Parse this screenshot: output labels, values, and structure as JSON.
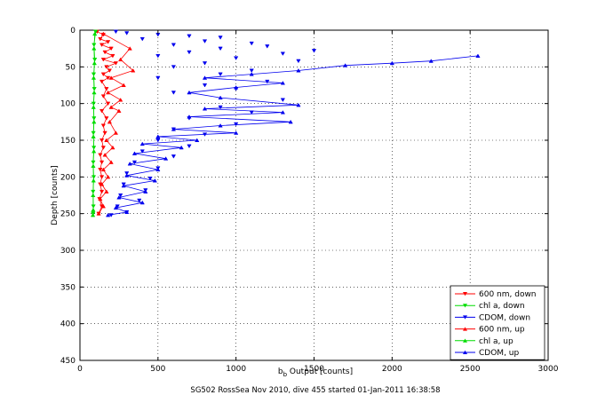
{
  "chart_data": {
    "type": "scatter",
    "xlabel_main": "b",
    "xlabel_sub": "b",
    "xlabel_rest": " Output [counts]",
    "ylabel": "Depth [counts]",
    "caption": "SG502 RossSea Nov 2010, dive 455 started 01-Jan-2011 16:38:58",
    "xlim": [
      0,
      3000
    ],
    "ylim": [
      0,
      450
    ],
    "y_reversed": true,
    "grid": true,
    "legend_placement": "bottom-right",
    "xticks": [
      0,
      500,
      1000,
      1500,
      2000,
      2500,
      3000
    ],
    "yticks": [
      0,
      50,
      100,
      150,
      200,
      250,
      300,
      350,
      400,
      450
    ],
    "series": [
      {
        "name": "600 nm, down",
        "color": "#ff0000",
        "marker": "triangle-down",
        "points": [
          [
            110,
            2
          ],
          [
            150,
            6
          ],
          [
            130,
            12
          ],
          [
            180,
            16
          ],
          [
            140,
            20
          ],
          [
            200,
            25
          ],
          [
            160,
            30
          ],
          [
            210,
            35
          ],
          [
            150,
            40
          ],
          [
            230,
            45
          ],
          [
            170,
            50
          ],
          [
            190,
            55
          ],
          [
            150,
            60
          ],
          [
            180,
            65
          ],
          [
            140,
            70
          ],
          [
            170,
            80
          ],
          [
            150,
            90
          ],
          [
            180,
            100
          ],
          [
            140,
            110
          ],
          [
            170,
            120
          ],
          [
            150,
            130
          ],
          [
            160,
            140
          ],
          [
            140,
            150
          ],
          [
            150,
            160
          ],
          [
            130,
            170
          ],
          [
            140,
            180
          ],
          [
            130,
            190
          ],
          [
            140,
            200
          ],
          [
            130,
            210
          ],
          [
            140,
            220
          ],
          [
            125,
            230
          ],
          [
            140,
            240
          ],
          [
            120,
            250
          ]
        ]
      },
      {
        "name": "chl a, down",
        "color": "#00dd00",
        "marker": "triangle-down",
        "points": [
          [
            100,
            2
          ],
          [
            90,
            20
          ],
          [
            95,
            40
          ],
          [
            88,
            60
          ],
          [
            92,
            80
          ],
          [
            87,
            100
          ],
          [
            90,
            120
          ],
          [
            86,
            140
          ],
          [
            89,
            160
          ],
          [
            85,
            180
          ],
          [
            88,
            200
          ],
          [
            84,
            220
          ],
          [
            86,
            240
          ],
          [
            84,
            250
          ]
        ]
      },
      {
        "name": "CDOM, down",
        "color": "#0000ee",
        "marker": "triangle-down",
        "points": [
          [
            230,
            2
          ],
          [
            300,
            4
          ],
          [
            500,
            6
          ],
          [
            700,
            8
          ],
          [
            900,
            10
          ],
          [
            400,
            12
          ],
          [
            800,
            15
          ],
          [
            1100,
            18
          ],
          [
            600,
            20
          ],
          [
            1200,
            22
          ],
          [
            900,
            25
          ],
          [
            1500,
            28
          ],
          [
            700,
            30
          ],
          [
            1300,
            32
          ],
          [
            500,
            35
          ],
          [
            1000,
            38
          ],
          [
            1400,
            42
          ],
          [
            800,
            45
          ],
          [
            600,
            50
          ],
          [
            1100,
            55
          ],
          [
            900,
            60
          ],
          [
            500,
            65
          ],
          [
            1200,
            70
          ],
          [
            800,
            75
          ],
          [
            1000,
            80
          ],
          [
            600,
            85
          ],
          [
            1300,
            95
          ],
          [
            900,
            105
          ],
          [
            1100,
            112
          ],
          [
            700,
            120
          ],
          [
            1000,
            128
          ],
          [
            600,
            135
          ],
          [
            800,
            142
          ],
          [
            500,
            150
          ],
          [
            700,
            158
          ],
          [
            400,
            165
          ],
          [
            600,
            172
          ],
          [
            350,
            180
          ],
          [
            500,
            188
          ],
          [
            300,
            195
          ],
          [
            450,
            202
          ],
          [
            280,
            210
          ],
          [
            420,
            218
          ],
          [
            260,
            225
          ],
          [
            380,
            232
          ],
          [
            240,
            240
          ],
          [
            300,
            248
          ],
          [
            200,
            252
          ]
        ],
        "lines": false
      },
      {
        "name": "600 nm, up",
        "color": "#ff0000",
        "marker": "triangle-up",
        "points": [
          [
            150,
            5
          ],
          [
            320,
            25
          ],
          [
            260,
            40
          ],
          [
            340,
            55
          ],
          [
            200,
            65
          ],
          [
            280,
            75
          ],
          [
            180,
            85
          ],
          [
            260,
            95
          ],
          [
            200,
            105
          ],
          [
            250,
            110
          ],
          [
            190,
            125
          ],
          [
            230,
            140
          ],
          [
            170,
            150
          ],
          [
            210,
            160
          ],
          [
            160,
            170
          ],
          [
            200,
            180
          ],
          [
            150,
            190
          ],
          [
            180,
            200
          ],
          [
            140,
            210
          ],
          [
            170,
            220
          ],
          [
            130,
            230
          ],
          [
            150,
            240
          ],
          [
            120,
            250
          ]
        ]
      },
      {
        "name": "chl a, up",
        "color": "#00dd00",
        "marker": "triangle-up",
        "points": [
          [
            95,
            5
          ],
          [
            90,
            25
          ],
          [
            93,
            45
          ],
          [
            88,
            65
          ],
          [
            91,
            85
          ],
          [
            87,
            105
          ],
          [
            90,
            125
          ],
          [
            86,
            145
          ],
          [
            89,
            165
          ],
          [
            85,
            185
          ],
          [
            87,
            205
          ],
          [
            84,
            225
          ],
          [
            85,
            245
          ],
          [
            83,
            252
          ]
        ]
      },
      {
        "name": "CDOM, up",
        "color": "#0000ee",
        "marker": "triangle-up",
        "points": [
          [
            2550,
            35
          ],
          [
            2250,
            42
          ],
          [
            2000,
            45
          ],
          [
            1700,
            48
          ],
          [
            1400,
            55
          ],
          [
            1100,
            60
          ],
          [
            800,
            65
          ],
          [
            1300,
            72
          ],
          [
            1000,
            78
          ],
          [
            700,
            85
          ],
          [
            900,
            92
          ],
          [
            1400,
            102
          ],
          [
            800,
            107
          ],
          [
            1300,
            112
          ],
          [
            700,
            118
          ],
          [
            1350,
            125
          ],
          [
            900,
            130
          ],
          [
            600,
            135
          ],
          [
            1000,
            140
          ],
          [
            500,
            145
          ],
          [
            750,
            150
          ],
          [
            400,
            155
          ],
          [
            650,
            160
          ],
          [
            350,
            168
          ],
          [
            550,
            175
          ],
          [
            320,
            182
          ],
          [
            500,
            190
          ],
          [
            300,
            198
          ],
          [
            480,
            205
          ],
          [
            280,
            212
          ],
          [
            420,
            220
          ],
          [
            250,
            228
          ],
          [
            400,
            235
          ],
          [
            230,
            242
          ],
          [
            300,
            248
          ],
          [
            180,
            252
          ]
        ],
        "lines": true
      }
    ],
    "legend": [
      {
        "label": "600 nm, down",
        "color": "#ff0000",
        "marker": "triangle-down"
      },
      {
        "label": "chl a, down",
        "color": "#00dd00",
        "marker": "triangle-down"
      },
      {
        "label": "CDOM, down",
        "color": "#0000ee",
        "marker": "triangle-down"
      },
      {
        "label": "600 nm, up",
        "color": "#ff0000",
        "marker": "triangle-up"
      },
      {
        "label": "chl a, up",
        "color": "#00dd00",
        "marker": "triangle-up"
      },
      {
        "label": "CDOM, up",
        "color": "#0000ee",
        "marker": "triangle-up"
      }
    ]
  }
}
